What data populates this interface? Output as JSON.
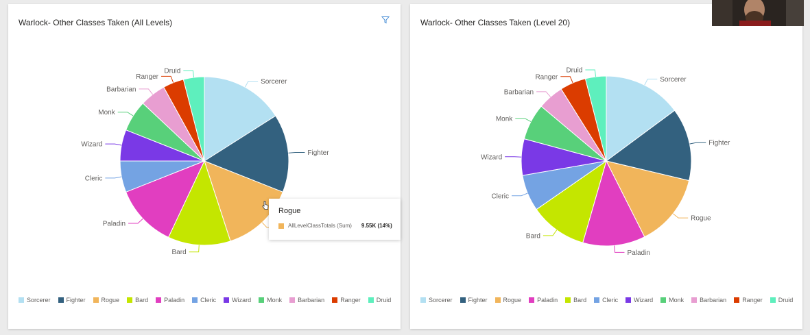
{
  "colors": {
    "Sorcerer": "#b3e0f2",
    "Fighter": "#33617f",
    "Rogue": "#f1b55b",
    "Bard": "#c4e600",
    "Paladin": "#e13ec0",
    "Cleric": "#74a3e3",
    "Wizard": "#7a39e6",
    "Monk": "#58d07a",
    "Barbarian": "#e89ed1",
    "Ranger": "#db3c00",
    "Druid": "#5eefbd"
  },
  "chart_data": [
    {
      "type": "pie",
      "title": "Warlock- Other Classes Taken (All Levels)",
      "categories": [
        "Sorcerer",
        "Fighter",
        "Rogue",
        "Bard",
        "Paladin",
        "Cleric",
        "Wizard",
        "Monk",
        "Barbarian",
        "Ranger",
        "Druid"
      ],
      "values": [
        16,
        15,
        14,
        12,
        12,
        6,
        6,
        6,
        5,
        4,
        4
      ],
      "legend": [
        "Sorcerer",
        "Fighter",
        "Rogue",
        "Bard",
        "Paladin",
        "Cleric",
        "Wizard",
        "Monk",
        "Barbarian",
        "Ranger",
        "Druid"
      ],
      "legend_position": "bottom-left",
      "tooltip": {
        "category": "Rogue",
        "measure": "AllLevelClassTotals (Sum)",
        "value": "9.55K (14%)"
      }
    },
    {
      "type": "pie",
      "title": "Warlock- Other Classes Taken (Level 20)",
      "categories": [
        "Sorcerer",
        "Fighter",
        "Rogue",
        "Paladin",
        "Bard",
        "Cleric",
        "Wizard",
        "Monk",
        "Barbarian",
        "Ranger",
        "Druid"
      ],
      "values": [
        15,
        14,
        14,
        12,
        11,
        7,
        7,
        7,
        5,
        5,
        4
      ],
      "legend": [
        "Sorcerer",
        "Fighter",
        "Rogue",
        "Paladin",
        "Bard",
        "Cleric",
        "Wizard",
        "Monk",
        "Barbarian",
        "Ranger",
        "Druid"
      ],
      "legend_position": "bottom-left"
    }
  ]
}
